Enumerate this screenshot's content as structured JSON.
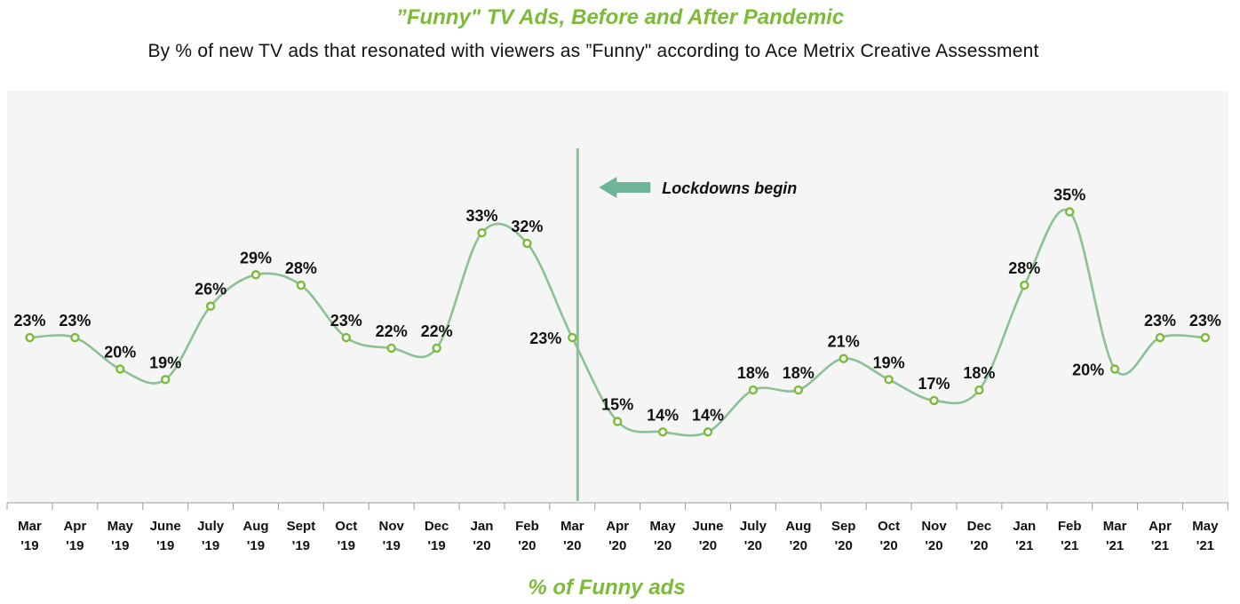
{
  "chart_data": {
    "type": "line",
    "title": "”Funny\" TV Ads, Before and After Pandemic",
    "subtitle": "By % of new TV ads that resonated with viewers as ”Funny\" according to Ace Metrix Creative Assessment",
    "categories": [
      [
        "Mar",
        "'19"
      ],
      [
        "Apr",
        "'19"
      ],
      [
        "May",
        "'19"
      ],
      [
        "June",
        "'19"
      ],
      [
        "July",
        "'19"
      ],
      [
        "Aug",
        "'19"
      ],
      [
        "Sept",
        "'19"
      ],
      [
        "Oct",
        "'19"
      ],
      [
        "Nov",
        "'19"
      ],
      [
        "Dec",
        "'19"
      ],
      [
        "Jan",
        "'20"
      ],
      [
        "Feb",
        "'20"
      ],
      [
        "Mar",
        "'20"
      ],
      [
        "Apr",
        "'20"
      ],
      [
        "May",
        "'20"
      ],
      [
        "June",
        "'20"
      ],
      [
        "July",
        "'20"
      ],
      [
        "Aug",
        "'20"
      ],
      [
        "Sep",
        "'20"
      ],
      [
        "Oct",
        "'20"
      ],
      [
        "Nov",
        "'20"
      ],
      [
        "Dec",
        "'20"
      ],
      [
        "Jan",
        "'21"
      ],
      [
        "Feb",
        "'21"
      ],
      [
        "Mar",
        "'21"
      ],
      [
        "Apr",
        "'21"
      ],
      [
        "May",
        "'21"
      ]
    ],
    "series": [
      {
        "name": "% of Funny ads",
        "values": [
          23,
          23,
          20,
          19,
          26,
          29,
          28,
          23,
          22,
          22,
          33,
          32,
          23,
          15,
          14,
          14,
          18,
          18,
          21,
          19,
          17,
          18,
          28,
          35,
          20,
          23,
          23
        ],
        "labels": [
          "23%",
          "23%",
          "20%",
          "19%",
          "26%",
          "29%",
          "28%",
          "23%",
          "22%",
          "22%",
          "33%",
          "32%",
          "23%",
          "15%",
          "14%",
          "14%",
          "18%",
          "18%",
          "21%",
          "19%",
          "17%",
          "18%",
          "28%",
          "35%",
          "20%",
          "23%",
          "23%"
        ]
      }
    ],
    "annotation": {
      "text": "Lockdowns begin",
      "at_category_index": 12
    },
    "ylim": [
      0,
      40
    ],
    "grid": false,
    "legend": "bottom",
    "colors": {
      "line": "#8cc096",
      "marker": "#7cbb37",
      "divider": "#8cc096",
      "arrow": "#6eb598",
      "plot_bg": "#f5f5f5",
      "title": "#7cbb37"
    }
  }
}
